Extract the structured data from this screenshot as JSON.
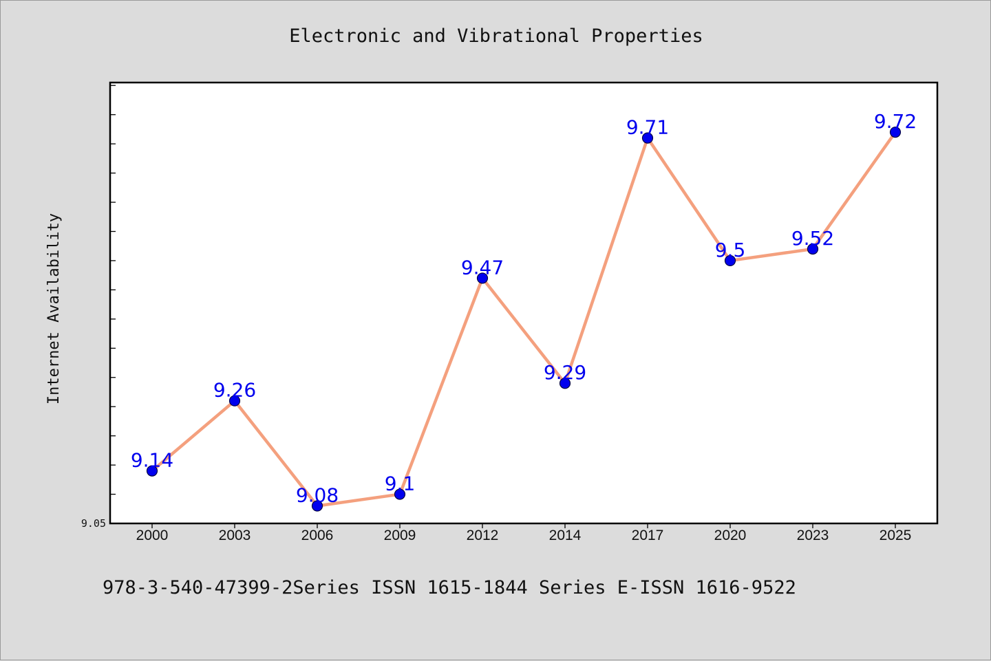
{
  "chart_data": {
    "type": "line",
    "title": "Electronic and Vibrational Properties",
    "ylabel": "Internet Availability",
    "xlabel": "",
    "categories": [
      "2000",
      "2003",
      "2006",
      "2009",
      "2012",
      "2014",
      "2017",
      "2020",
      "2023",
      "2025"
    ],
    "values": [
      9.14,
      9.26,
      9.08,
      9.1,
      9.47,
      9.29,
      9.71,
      9.5,
      9.52,
      9.72
    ],
    "data_labels": [
      "9.14",
      "9.26",
      "9.08",
      "9.1",
      "9.47",
      "9.29",
      "9.71",
      "9.5",
      "9.52",
      "9.72"
    ],
    "ylim": [
      9.05,
      9.805
    ],
    "y_tick_labels": [
      {
        "value": 9.05,
        "label": "9.05"
      }
    ],
    "y_minor_ticks": [
      9.05,
      9.1,
      9.15,
      9.2,
      9.25,
      9.3,
      9.35,
      9.4,
      9.45,
      9.5,
      9.55,
      9.6,
      9.65,
      9.7,
      9.75,
      9.8
    ],
    "grid": false,
    "legend": "none",
    "colors": {
      "line": "#f4a07e",
      "marker": "#0000ee",
      "marker_edge": "#000044",
      "data_label": "#0000ee",
      "plot_background": "#ffffff",
      "figure_background": "#dcdcdc"
    }
  },
  "footnote": "978-3-540-47399-2Series ISSN 1615-1844 Series E-ISSN 1616-9522"
}
